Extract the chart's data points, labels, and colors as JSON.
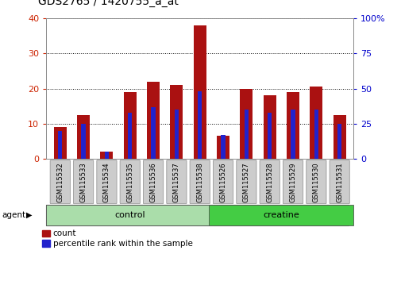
{
  "title": "GDS2765 / 1420755_a_at",
  "samples": [
    "GSM115532",
    "GSM115533",
    "GSM115534",
    "GSM115535",
    "GSM115536",
    "GSM115537",
    "GSM115538",
    "GSM115526",
    "GSM115527",
    "GSM115528",
    "GSM115529",
    "GSM115530",
    "GSM115531"
  ],
  "count_values": [
    9,
    12.5,
    2,
    19,
    22,
    21,
    38,
    6.5,
    20,
    18,
    19,
    20.5,
    12.5
  ],
  "percentile_values": [
    20,
    25,
    5,
    33,
    37,
    35,
    48,
    17,
    35,
    33,
    35,
    35,
    25
  ],
  "groups": [
    {
      "label": "control",
      "start": 0,
      "end": 7,
      "color": "#aaddaa"
    },
    {
      "label": "creatine",
      "start": 7,
      "end": 13,
      "color": "#44cc44"
    }
  ],
  "bar_color_count": "#aa1111",
  "bar_color_pct": "#2222cc",
  "ylim_left": [
    0,
    40
  ],
  "ylim_right": [
    0,
    100
  ],
  "yticks_left": [
    0,
    10,
    20,
    30,
    40
  ],
  "yticks_right": [
    0,
    25,
    50,
    75,
    100
  ],
  "left_tick_color": "#cc2200",
  "right_tick_color": "#0000cc",
  "bar_width": 0.55,
  "pct_bar_width": 0.18,
  "agent_label": "agent",
  "legend_count_label": "count",
  "legend_pct_label": "percentile rank within the sample",
  "background_color": "#ffffff",
  "plot_bg_color": "#ffffff",
  "grid_color": "#000000",
  "tick_label_bg": "#cccccc",
  "title_fontsize": 10,
  "tick_fontsize": 8,
  "label_fontsize": 6
}
